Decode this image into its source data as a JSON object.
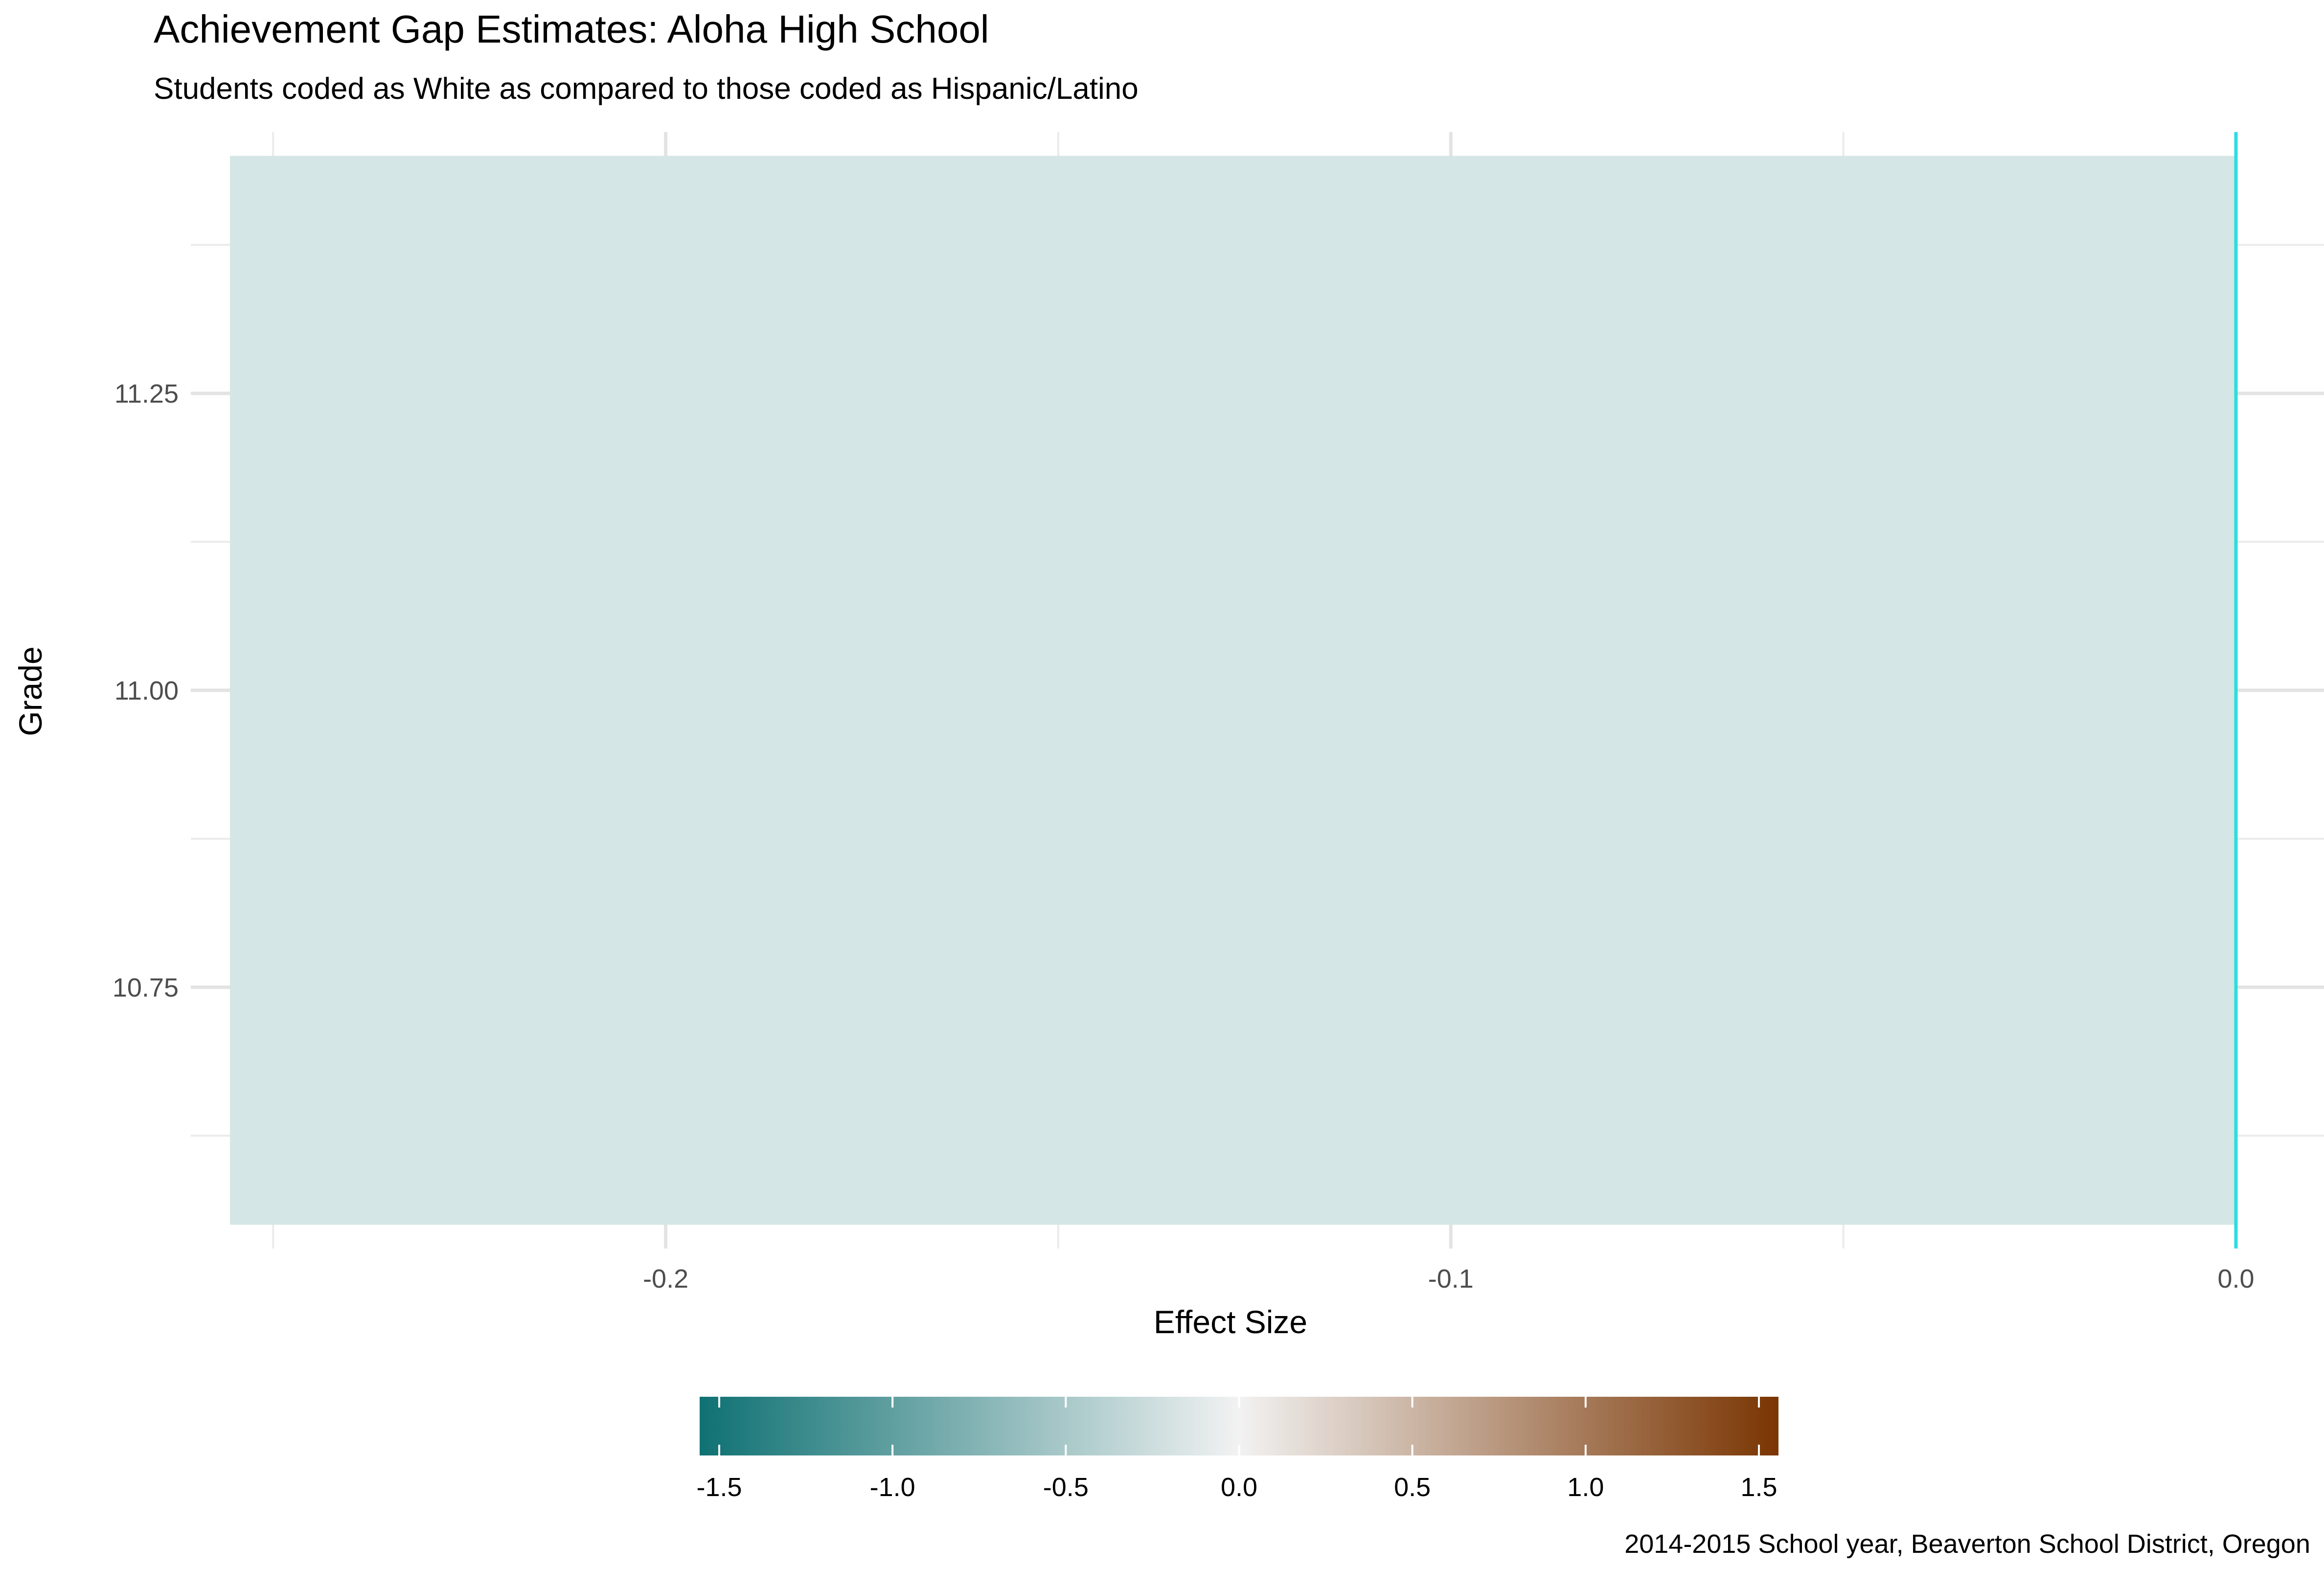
{
  "title": "Achievement Gap Estimates: Aloha High School",
  "subtitle": "Students coded as White as compared to those coded as Hispanic/Latino",
  "caption": "2014-2015 School year, Beaverton School District, Oregon",
  "chart_data": {
    "type": "heatmap",
    "xlabel": "Effect Size",
    "ylabel": "Grade",
    "xlim": [
      -0.2555,
      0.0
    ],
    "ylim": [
      10.53,
      11.47
    ],
    "x_ticks": [
      -0.2,
      -0.1,
      0.0
    ],
    "x_tick_labels": [
      "-0.2",
      "-0.1",
      "0.0"
    ],
    "y_ticks": [
      10.75,
      11.0,
      11.25
    ],
    "y_tick_labels": [
      "10.75",
      "11.00",
      "11.25"
    ],
    "grid": true,
    "tiles": [
      {
        "grade": 11,
        "x_start": -0.2555,
        "x_end": 0.0,
        "effect_size": -0.2555,
        "color": "#d4e6e5"
      }
    ],
    "reference_line": {
      "x": 0.0,
      "color": "#2ddde0"
    },
    "legend": {
      "position": "bottom",
      "type": "colorbar",
      "range": [
        -1.5,
        1.5
      ],
      "ticks": [
        -1.5,
        -1.0,
        -0.5,
        0.0,
        0.5,
        1.0,
        1.5
      ],
      "tick_labels": [
        "-1.5",
        "-1.0",
        "-0.5",
        "0.0",
        "0.5",
        "1.0",
        "1.5"
      ],
      "colors": [
        "#0f7173",
        "#f2f2f2",
        "#7a3502"
      ]
    }
  }
}
